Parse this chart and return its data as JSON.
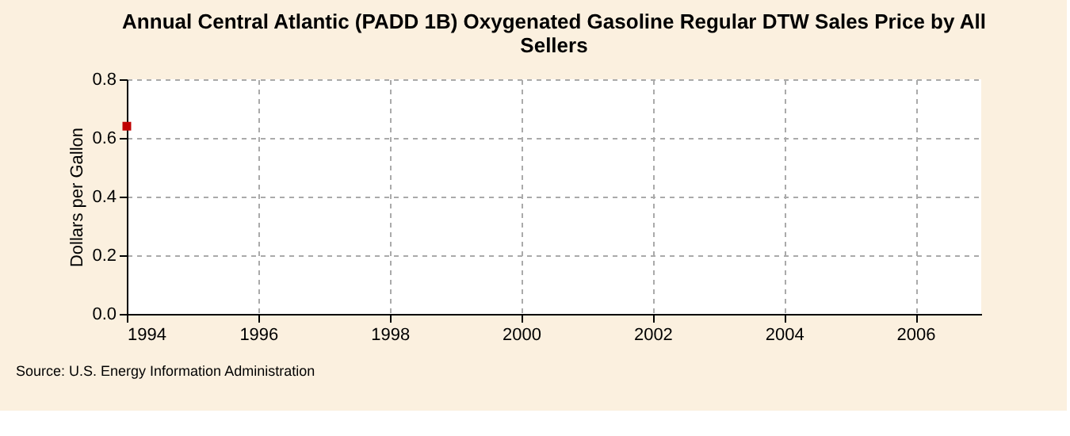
{
  "chart_data": {
    "type": "scatter",
    "title": "Annual Central Atlantic (PADD 1B) Oxygenated Gasoline Regular DTW Sales Price by All Sellers",
    "ylabel": "Dollars per Gallon",
    "x": [
      1994
    ],
    "series": [
      {
        "color": "#c00000",
        "values": [
          0.64
        ]
      }
    ],
    "xlim": [
      1994,
      2007
    ],
    "xticks": [
      1994,
      1996,
      1998,
      2000,
      2002,
      2004,
      2006
    ],
    "ylim": [
      0,
      0.8
    ],
    "yticks": [
      {
        "value": 0,
        "label": "0.0"
      },
      0.2,
      0.4,
      0.6,
      0.8
    ],
    "grid": true,
    "marker": "square",
    "annotations": [
      "Source: U.S. Energy Information Administration"
    ]
  }
}
